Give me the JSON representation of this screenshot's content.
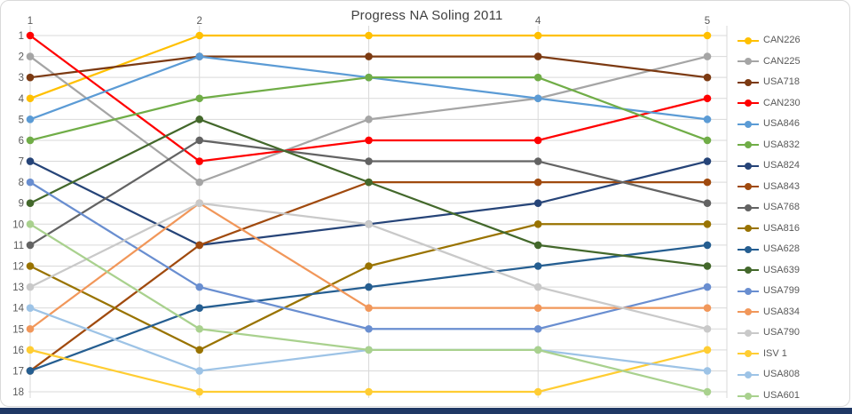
{
  "window": {
    "background": "#FFFFFF",
    "frame_border_color": "#D9D9D9",
    "bottom_bar_color": "#203864"
  },
  "chart_data": {
    "type": "line",
    "title": "Progress NA Soling 2011",
    "title_color": "#404040",
    "axis_label_color": "#595959",
    "gridline_color": "#D9D9D9",
    "grid": true,
    "legend_position": "right",
    "x_values": [
      1,
      2,
      3,
      4,
      5
    ],
    "x_tick_labels": [
      "1",
      "2",
      "",
      "4",
      "5"
    ],
    "y_ticks": [
      "1",
      "2",
      "3",
      "4",
      "5",
      "6",
      "7",
      "8",
      "9",
      "10",
      "11",
      "12",
      "13",
      "14",
      "15",
      "16",
      "17",
      "18"
    ],
    "ylim": [
      1,
      18
    ],
    "y_inverted": true,
    "series": [
      {
        "name": "CAN226",
        "color": "#FFC000",
        "values": [
          4,
          1,
          1,
          1,
          1
        ]
      },
      {
        "name": "CAN225",
        "color": "#A5A5A5",
        "values": [
          2,
          8,
          5,
          4,
          2
        ]
      },
      {
        "name": "USA718",
        "color": "#7C3A12",
        "values": [
          3,
          2,
          2,
          2,
          3
        ]
      },
      {
        "name": "CAN230",
        "color": "#FF0000",
        "values": [
          1,
          7,
          6,
          6,
          4
        ]
      },
      {
        "name": "USA846",
        "color": "#5B9BD5",
        "values": [
          5,
          2,
          3,
          4,
          5
        ]
      },
      {
        "name": "USA832",
        "color": "#70AD47",
        "values": [
          6,
          4,
          3,
          3,
          6
        ]
      },
      {
        "name": "USA824",
        "color": "#264478",
        "values": [
          7,
          11,
          10,
          9,
          7
        ]
      },
      {
        "name": "USA843",
        "color": "#A04A0E",
        "values": [
          17,
          11,
          8,
          8,
          8
        ]
      },
      {
        "name": "USA768",
        "color": "#636363",
        "values": [
          11,
          6,
          7,
          7,
          9
        ]
      },
      {
        "name": "USA816",
        "color": "#997300",
        "values": [
          12,
          16,
          12,
          10,
          10
        ]
      },
      {
        "name": "USA628",
        "color": "#255E91",
        "values": [
          17,
          14,
          13,
          12,
          11
        ]
      },
      {
        "name": "USA639",
        "color": "#43682B",
        "values": [
          9,
          5,
          8,
          11,
          12
        ]
      },
      {
        "name": "USA799",
        "color": "#698ED0",
        "values": [
          8,
          13,
          15,
          15,
          13
        ]
      },
      {
        "name": "USA834",
        "color": "#F1975A",
        "values": [
          15,
          9,
          14,
          14,
          14
        ]
      },
      {
        "name": "USA790",
        "color": "#C9C9C9",
        "values": [
          13,
          9,
          10,
          13,
          15
        ]
      },
      {
        "name": "ISV 1",
        "color": "#FFCD33",
        "values": [
          16,
          18,
          18,
          18,
          16
        ]
      },
      {
        "name": "USA808",
        "color": "#9DC3E6",
        "values": [
          14,
          17,
          16,
          16,
          17
        ]
      },
      {
        "name": "USA601",
        "color": "#A9D18E",
        "values": [
          10,
          15,
          16,
          16,
          18
        ]
      }
    ]
  }
}
